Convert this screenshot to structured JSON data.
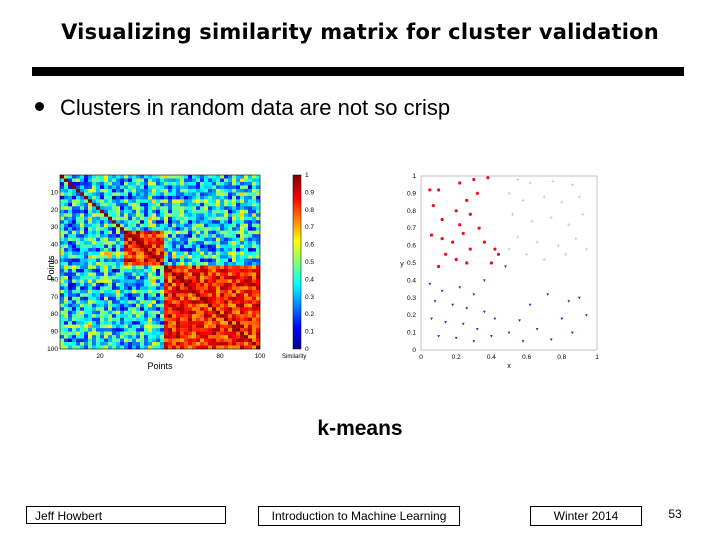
{
  "slide": {
    "title": "Visualizing similarity matrix for cluster validation",
    "bullet": "Clusters in random data are not so crisp",
    "caption": "k-means"
  },
  "similarity_matrix": {
    "y_ticks": [
      "10",
      "20",
      "30",
      "40",
      "50",
      "60",
      "70",
      "80",
      "90",
      "100"
    ],
    "x_ticks": [
      "20",
      "40",
      "60",
      "80",
      "100"
    ],
    "xlabel": "Points",
    "ylabel": "Points",
    "colorbar_ticks": [
      "1",
      "0.9",
      "0.8",
      "0.7",
      "0.6",
      "0.5",
      "0.4",
      "0.3",
      "0.2",
      "0.1",
      "0"
    ],
    "colorbar_label": "Similarity",
    "colors": {
      "low": "#00008f",
      "mid": "#3fbfd0",
      "high": "#8b0000"
    }
  },
  "chart_data": {
    "type": "scatter",
    "xlabel": "x",
    "ylabel": "y",
    "xlim": [
      0,
      1
    ],
    "ylim": [
      0,
      1
    ],
    "x_ticks": [
      "0",
      "0.2",
      "0.4",
      "0.6",
      "0.8",
      "1"
    ],
    "y_ticks": [
      "0",
      "0.1",
      "0.2",
      "0.3",
      "0.4",
      "0.5",
      "0.6",
      "0.7",
      "0.8",
      "0.9",
      "1"
    ],
    "series": [
      {
        "color": "#e0141e",
        "marker": "dot",
        "points": [
          [
            0.05,
            0.92
          ],
          [
            0.1,
            0.92
          ],
          [
            0.22,
            0.96
          ],
          [
            0.3,
            0.98
          ],
          [
            0.38,
            0.99
          ],
          [
            0.07,
            0.83
          ],
          [
            0.2,
            0.8
          ],
          [
            0.26,
            0.86
          ],
          [
            0.32,
            0.9
          ],
          [
            0.12,
            0.75
          ],
          [
            0.22,
            0.72
          ],
          [
            0.28,
            0.78
          ],
          [
            0.06,
            0.66
          ],
          [
            0.12,
            0.64
          ],
          [
            0.18,
            0.62
          ],
          [
            0.24,
            0.67
          ],
          [
            0.33,
            0.7
          ],
          [
            0.14,
            0.55
          ],
          [
            0.2,
            0.52
          ],
          [
            0.28,
            0.58
          ],
          [
            0.36,
            0.62
          ],
          [
            0.42,
            0.58
          ],
          [
            0.1,
            0.48
          ],
          [
            0.26,
            0.5
          ],
          [
            0.4,
            0.5
          ],
          [
            0.44,
            0.55
          ]
        ]
      },
      {
        "color": "#c8c8c8",
        "marker": "plus",
        "points": [
          [
            0.55,
            0.98
          ],
          [
            0.62,
            0.96
          ],
          [
            0.75,
            0.97
          ],
          [
            0.86,
            0.95
          ],
          [
            0.5,
            0.9
          ],
          [
            0.58,
            0.86
          ],
          [
            0.7,
            0.88
          ],
          [
            0.8,
            0.85
          ],
          [
            0.9,
            0.88
          ],
          [
            0.52,
            0.78
          ],
          [
            0.63,
            0.74
          ],
          [
            0.74,
            0.76
          ],
          [
            0.84,
            0.72
          ],
          [
            0.92,
            0.78
          ],
          [
            0.55,
            0.65
          ],
          [
            0.66,
            0.62
          ],
          [
            0.78,
            0.6
          ],
          [
            0.88,
            0.64
          ],
          [
            0.6,
            0.55
          ],
          [
            0.7,
            0.52
          ],
          [
            0.82,
            0.55
          ],
          [
            0.94,
            0.58
          ],
          [
            0.5,
            0.58
          ]
        ]
      },
      {
        "color": "#1e28c8",
        "marker": "triangle",
        "points": [
          [
            0.05,
            0.38
          ],
          [
            0.12,
            0.34
          ],
          [
            0.22,
            0.36
          ],
          [
            0.3,
            0.32
          ],
          [
            0.08,
            0.28
          ],
          [
            0.18,
            0.26
          ],
          [
            0.26,
            0.24
          ],
          [
            0.36,
            0.22
          ],
          [
            0.06,
            0.18
          ],
          [
            0.14,
            0.16
          ],
          [
            0.24,
            0.15
          ],
          [
            0.32,
            0.12
          ],
          [
            0.42,
            0.18
          ],
          [
            0.1,
            0.08
          ],
          [
            0.2,
            0.07
          ],
          [
            0.3,
            0.05
          ],
          [
            0.4,
            0.08
          ],
          [
            0.5,
            0.1
          ],
          [
            0.56,
            0.17
          ],
          [
            0.62,
            0.26
          ],
          [
            0.58,
            0.05
          ],
          [
            0.66,
            0.12
          ],
          [
            0.74,
            0.06
          ],
          [
            0.8,
            0.18
          ],
          [
            0.86,
            0.1
          ],
          [
            0.9,
            0.3
          ],
          [
            0.94,
            0.2
          ],
          [
            0.84,
            0.28
          ],
          [
            0.48,
            0.48
          ],
          [
            0.36,
            0.4
          ],
          [
            0.72,
            0.32
          ]
        ]
      }
    ]
  },
  "footer": {
    "author": "Jeff Howbert",
    "course": "Introduction to Machine Learning",
    "term": "Winter 2014",
    "page": "53"
  }
}
